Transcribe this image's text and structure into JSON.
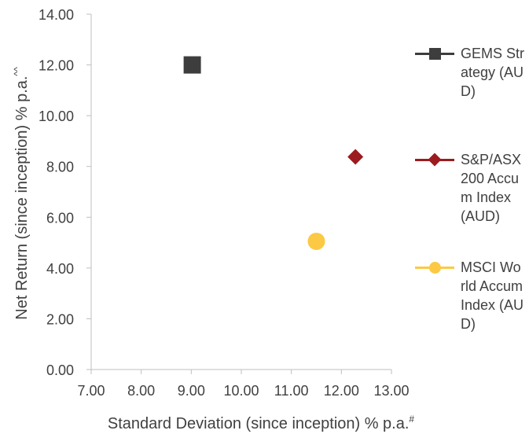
{
  "chart_data": {
    "type": "scatter",
    "xlabel": "Standard Deviation (since inception) % p.a.",
    "xlabel_sup": "#",
    "ylabel": "Net Return (since inception) % p.a.",
    "ylabel_sup": "^^",
    "xlim": [
      7,
      13
    ],
    "ylim": [
      0,
      14
    ],
    "x_ticks": [
      "7.00",
      "8.00",
      "9.00",
      "10.00",
      "11.00",
      "12.00",
      "13.00"
    ],
    "y_ticks": [
      "0.00",
      "2.00",
      "4.00",
      "6.00",
      "8.00",
      "10.00",
      "12.00",
      "14.00"
    ],
    "grid": false,
    "legend_position": "right",
    "series": [
      {
        "name": "GEMS Strategy (AUD)",
        "marker": "square",
        "color": "#3d3d3d",
        "x": 9.02,
        "y": 12.0
      },
      {
        "name": "S&P/ASX 200 Accum Index (AUD)",
        "marker": "diamond",
        "color": "#9b1b1f",
        "x": 12.28,
        "y": 8.38
      },
      {
        "name": "MSCI World Accum Index (AUD)",
        "marker": "circle",
        "color": "#fcc945",
        "x": 11.5,
        "y": 5.05
      }
    ]
  }
}
